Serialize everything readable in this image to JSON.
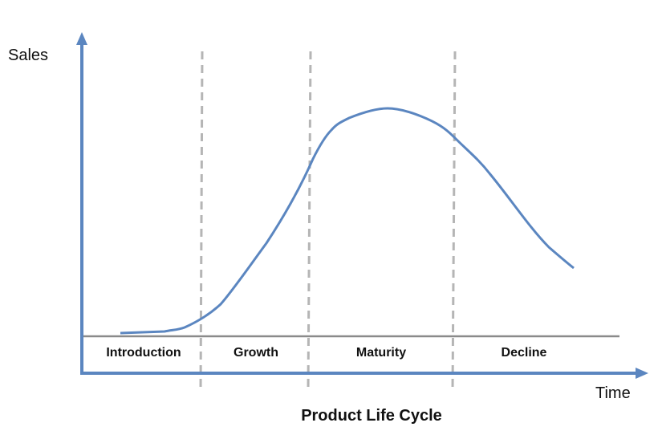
{
  "diagram": {
    "title": "Product Life Cycle",
    "y_axis_label": "Sales",
    "x_axis_label": "Time",
    "stages": [
      "Introduction",
      "Growth",
      "Maturity",
      "Decline"
    ],
    "colors": {
      "axis": "#5b86c0",
      "curve": "#5b86c0",
      "divider": "#b5b5b5",
      "baseline": "#8a8a8a",
      "text": "#111111"
    }
  }
}
